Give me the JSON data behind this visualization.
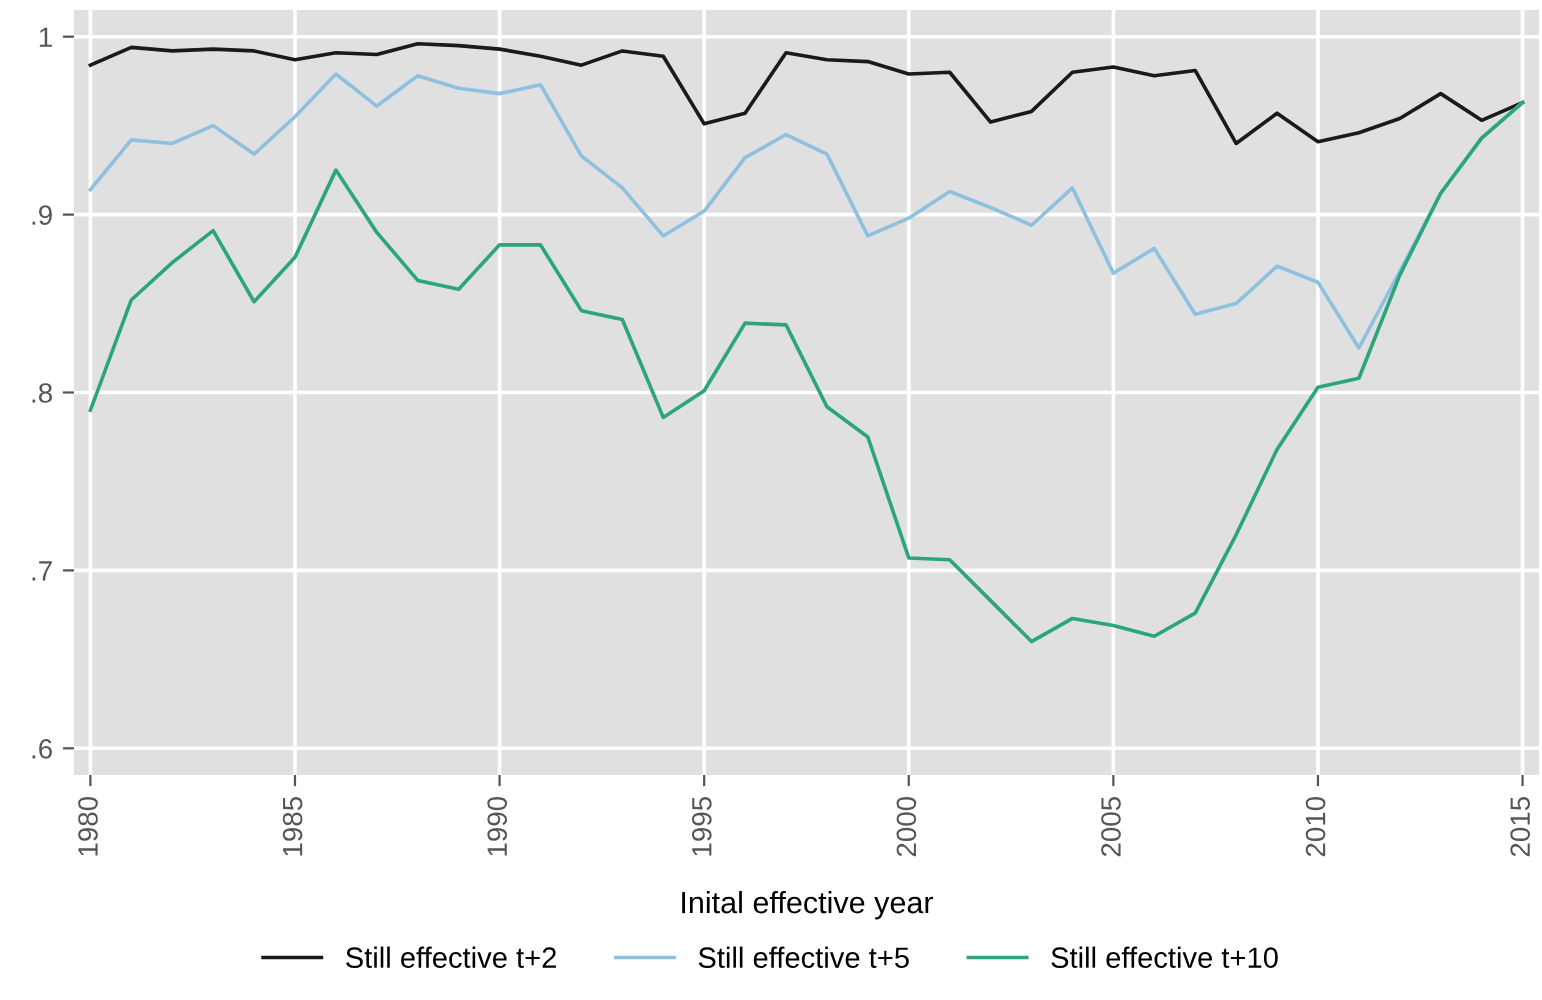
{
  "chart_data": {
    "type": "line",
    "xlabel": "Inital effective year",
    "x": [
      1980,
      1981,
      1982,
      1983,
      1984,
      1985,
      1986,
      1987,
      1988,
      1989,
      1990,
      1991,
      1992,
      1993,
      1994,
      1995,
      1996,
      1997,
      1998,
      1999,
      2000,
      2001,
      2002,
      2003,
      2004,
      2005,
      2006,
      2007,
      2008,
      2009,
      2010,
      2011,
      2012,
      2013,
      2014,
      2015
    ],
    "series": [
      {
        "name": "Still effective t+2",
        "color": "#1a1a1a",
        "values": [
          0.984,
          0.994,
          0.992,
          0.993,
          0.992,
          0.987,
          0.991,
          0.99,
          0.996,
          0.995,
          0.993,
          0.989,
          0.984,
          0.992,
          0.989,
          0.951,
          0.957,
          0.991,
          0.987,
          0.986,
          0.979,
          0.98,
          0.952,
          0.958,
          0.98,
          0.983,
          0.978,
          0.981,
          0.94,
          0.957,
          0.941,
          0.946,
          0.954,
          0.968,
          0.953,
          0.963
        ]
      },
      {
        "name": "Still effective t+5",
        "color": "#8ec1e0",
        "values": [
          0.914,
          0.942,
          0.94,
          0.95,
          0.934,
          0.955,
          0.979,
          0.961,
          0.978,
          0.971,
          0.968,
          0.973,
          0.933,
          0.915,
          0.888,
          0.902,
          0.932,
          0.945,
          0.934,
          0.888,
          0.898,
          0.913,
          0.904,
          0.894,
          0.915,
          0.867,
          0.881,
          0.844,
          0.85,
          0.871,
          0.862,
          0.825,
          0.868,
          0.912,
          0.943,
          0.963
        ]
      },
      {
        "name": "Still effective t+10",
        "color": "#2aa57e",
        "values": [
          0.79,
          0.852,
          0.873,
          0.891,
          0.851,
          0.876,
          0.925,
          0.89,
          0.863,
          0.858,
          0.883,
          0.883,
          0.846,
          0.841,
          0.786,
          0.801,
          0.839,
          0.838,
          0.792,
          0.775,
          0.707,
          0.706,
          0.683,
          0.66,
          0.673,
          0.669,
          0.663,
          0.676,
          0.72,
          0.768,
          0.803,
          0.808,
          0.866,
          0.912,
          0.943,
          0.963
        ]
      }
    ],
    "xlim": [
      1979.6,
      2015.4
    ],
    "ylim": [
      0.585,
      1.015
    ],
    "xticks": [
      1980,
      1985,
      1990,
      1995,
      2000,
      2005,
      2010,
      2015
    ],
    "yticks": [
      {
        "value": 0.6,
        "label": ".6"
      },
      {
        "value": 0.7,
        "label": ".7"
      },
      {
        "value": 0.8,
        "label": ".8"
      },
      {
        "value": 0.9,
        "label": ".9"
      },
      {
        "value": 1,
        "label": "1"
      }
    ],
    "grid": true,
    "legend": "bottom",
    "marker": "none",
    "line_style": "solid"
  }
}
